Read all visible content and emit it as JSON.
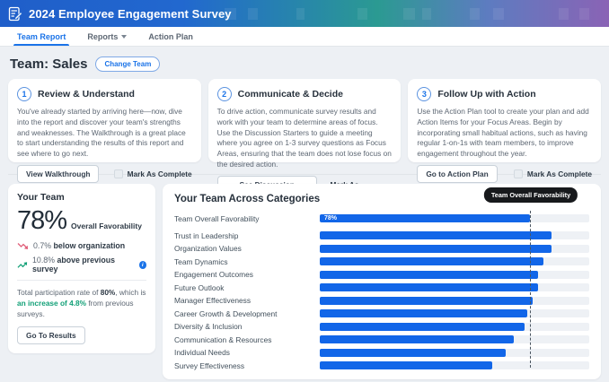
{
  "header": {
    "title": "2024 Employee Engagement Survey"
  },
  "nav": {
    "items": [
      {
        "label": "Team Report",
        "active": true
      },
      {
        "label": "Reports",
        "has_dropdown": true
      },
      {
        "label": "Action Plan",
        "active": false
      }
    ]
  },
  "team": {
    "heading": "Team: Sales",
    "change_button": "Change Team"
  },
  "steps": [
    {
      "number": "1",
      "title": "Review & Understand",
      "body": "You've already started by arriving here—now, dive into the report and discover your team's strengths and weaknesses. The Walkthrough is a great place to start understanding the results of this report and see where to go next.",
      "button": "View Walkthrough",
      "checkbox_label": "Mark As Complete"
    },
    {
      "number": "2",
      "title": "Communicate & Decide",
      "body": "To drive action, communicate survey results and work with your team to determine areas of focus. Use the Discussion Starters to guide a meeting where you agree on 1-3 survey questions as Focus Areas, ensuring that the team does not lose focus on the desired action.",
      "button": "See Discussion Starters",
      "checkbox_label": "Mark As Complete"
    },
    {
      "number": "3",
      "title": "Follow Up with Action",
      "body": "Use the Action Plan tool to create your plan and add Action Items for your Focus Areas. Begin by incorporating small habitual actions, such as having regular 1-on-1s with team members, to improve engagement throughout the year.",
      "button": "Go to Action Plan",
      "checkbox_label": "Mark As Complete"
    }
  ],
  "your_team": {
    "title": "Your Team",
    "score": "78%",
    "score_label": "Overall Favorability",
    "below_org_value": "0.7%",
    "below_org_label": "below organization",
    "above_prev_value": "10.8%",
    "above_prev_label": "above previous survey",
    "participation": {
      "prefix": "Total participation rate of ",
      "rate": "80%",
      "mid": ", which is ",
      "highlight": "an increase of 4.8%",
      "suffix": " from previous surveys."
    },
    "button": "Go To Results"
  },
  "chart": {
    "title": "Your Team Across Categories",
    "tooltip": "Team Overall Favorability",
    "first_bar_label": "78%"
  },
  "chart_data": {
    "type": "bar",
    "orientation": "horizontal",
    "title": "Your Team Across Categories",
    "categories": [
      "Team Overall Favorability",
      "Trust in Leadership",
      "Organization Values",
      "Team Dynamics",
      "Engagement Outcomes",
      "Future Outlook",
      "Manager Effectiveness",
      "Career Growth & Development",
      "Diversity & Inclusion",
      "Communication & Resources",
      "Individual Needs",
      "Survey Effectiveness"
    ],
    "values": [
      78,
      86,
      86,
      83,
      81,
      81,
      79,
      77,
      76,
      72,
      69,
      64
    ],
    "xlim": [
      0,
      100
    ],
    "data_labels": [
      "78%",
      "",
      "",
      "",
      "",
      "",
      "",
      "",
      "",
      "",
      "",
      ""
    ],
    "reference_line": {
      "label": "Team Overall Favorability",
      "value": 78
    },
    "bar_color": "#1266e8",
    "track_color": "#eef1f5",
    "legend": "none",
    "grid": false
  },
  "colors": {
    "accent_blue": "#1a73e8",
    "bar_blue": "#1266e8",
    "green": "#12a077",
    "red": "#e0607a",
    "header_gradient": [
      "#1f5ec9",
      "#2b9a92",
      "#8a63b5"
    ],
    "tooltip_bg": "#17191c",
    "page_bg": "#edf0f4"
  }
}
